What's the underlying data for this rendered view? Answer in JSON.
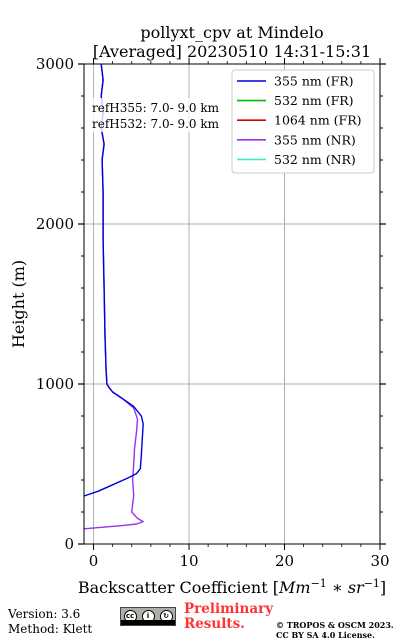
{
  "chart_data": {
    "type": "line",
    "title_line1": "pollyxt_cpv at Mindelo",
    "title_line2": "[Averaged] 20230510 14:31-15:31",
    "xlabel": "Backscatter Coefficient [",
    "xlabel_math": "Mm",
    "xlabel_exp1": "−1",
    "xlabel_mid": " ∗ ",
    "xlabel_math2": "sr",
    "xlabel_exp2": "−1",
    "xlabel_end": "]",
    "ylabel": "Height (m)",
    "xlim": [
      -1,
      30
    ],
    "ylim": [
      0,
      3000
    ],
    "xticks": [
      0,
      10,
      20,
      30
    ],
    "yticks": [
      0,
      1000,
      2000,
      3000
    ],
    "grid": true,
    "legend_placement": "top-right",
    "annotations": [
      "refH355:  7.0- 9.0 km",
      "refH532:  7.0- 9.0 km"
    ],
    "series": [
      {
        "name": "355 nm (FR)",
        "color": "#0000dd",
        "points": [
          [
            -1.0,
            300
          ],
          [
            0.5,
            330
          ],
          [
            2.0,
            370
          ],
          [
            3.5,
            410
          ],
          [
            4.5,
            440
          ],
          [
            4.9,
            470
          ],
          [
            5.0,
            550
          ],
          [
            5.1,
            650
          ],
          [
            5.2,
            750
          ],
          [
            5.0,
            800
          ],
          [
            4.2,
            860
          ],
          [
            3.0,
            910
          ],
          [
            2.0,
            950
          ],
          [
            1.6,
            980
          ],
          [
            1.4,
            1000
          ],
          [
            1.3,
            1100
          ],
          [
            1.2,
            1300
          ],
          [
            1.1,
            1600
          ],
          [
            1.0,
            1900
          ],
          [
            1.0,
            2200
          ],
          [
            0.9,
            2400
          ],
          [
            1.1,
            2500
          ],
          [
            0.8,
            2600
          ],
          [
            1.0,
            2700
          ],
          [
            0.8,
            2800
          ],
          [
            1.0,
            2900
          ],
          [
            0.8,
            3000
          ]
        ]
      },
      {
        "name": "532 nm (FR)",
        "color": "#00bb00",
        "points": []
      },
      {
        "name": "1064 nm (FR)",
        "color": "#dd0000",
        "points": []
      },
      {
        "name": "355 nm (NR)",
        "color": "#9933ee",
        "points": [
          [
            -1.0,
            95
          ],
          [
            1.0,
            105
          ],
          [
            3.0,
            115
          ],
          [
            4.5,
            125
          ],
          [
            5.2,
            140
          ],
          [
            4.6,
            160
          ],
          [
            4.0,
            200
          ],
          [
            4.2,
            300
          ],
          [
            4.1,
            400
          ],
          [
            4.2,
            500
          ],
          [
            4.3,
            600
          ],
          [
            4.5,
            700
          ],
          [
            4.6,
            780
          ],
          [
            4.2,
            850
          ],
          [
            3.0,
            910
          ],
          [
            2.0,
            950
          ],
          [
            1.6,
            980
          ],
          [
            1.4,
            1000
          ],
          [
            1.3,
            1100
          ],
          [
            1.2,
            1300
          ],
          [
            1.1,
            1600
          ],
          [
            1.0,
            1900
          ],
          [
            1.0,
            2200
          ],
          [
            0.9,
            2400
          ],
          [
            1.1,
            2500
          ],
          [
            0.8,
            2600
          ],
          [
            1.0,
            2700
          ],
          [
            0.8,
            2800
          ],
          [
            1.0,
            2900
          ],
          [
            0.8,
            3000
          ]
        ]
      },
      {
        "name": "532 nm (NR)",
        "color": "#44eecc",
        "points": []
      }
    ]
  },
  "footer": {
    "version": "Version: 3.6",
    "method": "Method: Klett",
    "prelim_line1": "Preliminary",
    "prelim_line2": "Results.",
    "copyright_line1": "© TROPOS & OSCM 2023.",
    "copyright_line2": "CC BY SA 4.0 License.",
    "cc_by": "BY",
    "cc_sa": "SA"
  }
}
